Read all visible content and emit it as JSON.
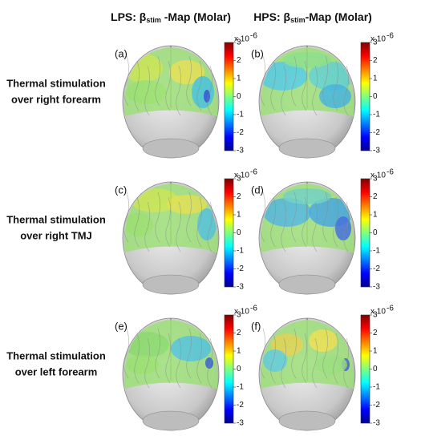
{
  "headers": [
    {
      "prefix": "LPS: β",
      "sub": "stim",
      "suffix": " -Map (Molar)"
    },
    {
      "prefix": "HPS: β",
      "sub": "stim",
      "suffix": "-Map (Molar)"
    }
  ],
  "rows": [
    {
      "label": [
        "Thermal stimulation",
        "over right forearm"
      ],
      "panels": [
        "(a)",
        "(b)"
      ]
    },
    {
      "label": [
        "Thermal stimulation",
        "over right TMJ"
      ],
      "panels": [
        "(c)",
        "(d)"
      ]
    },
    {
      "label": [
        "Thermal stimulation",
        "over left forearm"
      ],
      "panels": [
        "(e)",
        "(f)"
      ]
    }
  ],
  "colorbar": {
    "lim": [
      -3,
      3
    ],
    "ticks": [
      3,
      2,
      1,
      0,
      -1,
      -2,
      -3
    ],
    "exponent_base": "x 10",
    "exponent": "-6"
  }
}
